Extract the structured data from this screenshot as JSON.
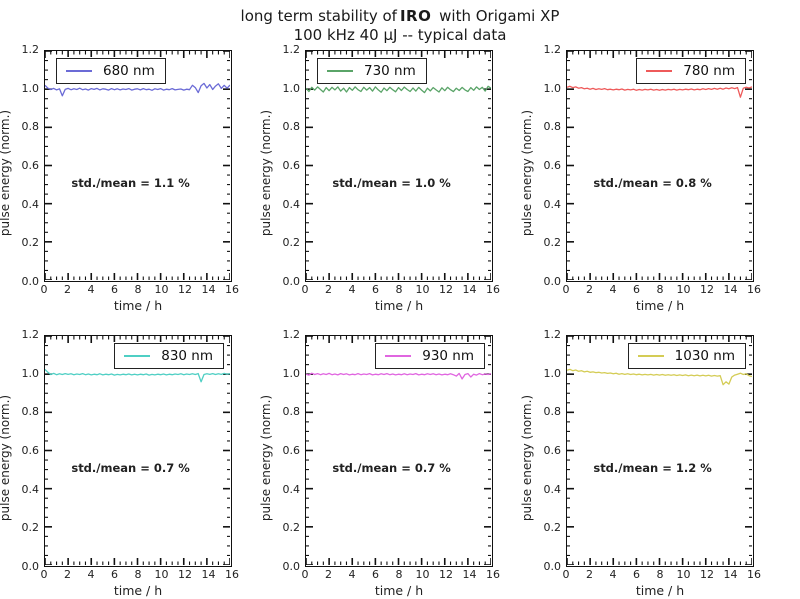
{
  "title": {
    "part1": "long term stability of",
    "part2": "IRO",
    "part3": " with Origami XP",
    "line2": "100 kHz 40 μJ -- typical data"
  },
  "axes": {
    "x_label": "time / h",
    "y_label": "pulse energy (norm.)",
    "x_range": [
      0,
      16
    ],
    "y_range": [
      0,
      1.2
    ],
    "x_tick_labels": [
      "0",
      "2",
      "4",
      "6",
      "8",
      "10",
      "12",
      "14",
      "16"
    ],
    "y_tick_labels": [
      "0.0",
      "0.2",
      "0.4",
      "0.6",
      "0.8",
      "1.0",
      "1.2"
    ],
    "x_major_step": 2,
    "x_minor_step": 0.5,
    "y_major_step": 0.2,
    "y_minor_step": 0.05,
    "grid": false
  },
  "chart_data": [
    {
      "type": "line",
      "legend": "680 nm",
      "color": "#6b6bd6",
      "legend_pos": "left",
      "stat_label": "std./mean = 1.1 %",
      "x_start": 0,
      "x_step": 0.25,
      "y": [
        1.02,
        1.005,
        0.998,
        1.004,
        0.996,
        1.002,
        0.965,
        0.999,
        1.004,
        0.997,
        1.002,
        0.998,
        1.005,
        0.997,
        1.001,
        0.995,
        1.003,
        0.999,
        1.004,
        0.996,
        1.002,
        1.0,
        0.995,
        1.003,
        0.997,
        1.002,
        0.996,
        1.001,
        0.998,
        1.003,
        0.995,
        1.0,
        1.002,
        0.996,
        1.003,
        0.997,
        1.0,
        0.994,
        1.002,
        0.998,
        1.003,
        0.995,
        1.0,
        0.997,
        1.003,
        0.996,
        0.999,
        1.001,
        0.995,
        1.0,
        0.997,
        1.02,
        1.008,
        0.982,
        1.018,
        1.03,
        1.006,
        1.024,
        0.998,
        1.016,
        1.028,
        1.004,
        1.02,
        1.005,
        1.022
      ]
    },
    {
      "type": "line",
      "legend": "730 nm",
      "color": "#5aa468",
      "legend_pos": "left",
      "stat_label": "std./mean = 1.0 %",
      "x_start": 0,
      "x_step": 0.25,
      "y": [
        1.005,
        0.988,
        1.01,
        0.995,
        1.012,
        0.998,
        0.985,
        1.008,
        0.992,
        1.01,
        0.996,
        1.012,
        0.99,
        1.005,
        0.985,
        1.008,
        0.994,
        1.012,
        0.997,
        0.988,
        1.01,
        0.995,
        1.008,
        0.99,
        1.012,
        0.996,
        0.984,
        1.006,
        0.992,
        1.01,
        0.997,
        0.986,
        1.008,
        0.993,
        1.011,
        0.998,
        0.988,
        1.006,
        0.99,
        1.009,
        0.995,
        0.982,
        1.005,
        0.991,
        1.008,
        0.996,
        0.985,
        1.007,
        0.992,
        1.01,
        0.997,
        0.987,
        1.005,
        0.993,
        1.009,
        0.996,
        0.988,
        1.008,
        0.994,
        1.012,
        0.998,
        1.01,
        0.99,
        1.015,
        1.005
      ]
    },
    {
      "type": "line",
      "legend": "780 nm",
      "color": "#ee5a5a",
      "legend_pos": "right",
      "stat_label": "std./mean = 0.8 %",
      "x_start": 0,
      "x_step": 0.25,
      "y": [
        1.01,
        1.015,
        1.008,
        1.012,
        1.005,
        1.008,
        1.002,
        1.005,
        1.0,
        1.004,
        0.998,
        1.002,
        0.999,
        1.003,
        0.997,
        1.0,
        0.996,
        1.0,
        0.997,
        1.001,
        0.995,
        0.999,
        0.996,
        1.0,
        0.994,
        0.998,
        0.995,
        0.999,
        0.996,
        1.0,
        0.995,
        0.998,
        0.994,
        0.998,
        0.995,
        0.999,
        0.996,
        1.0,
        0.995,
        0.999,
        0.996,
        1.0,
        0.997,
        1.001,
        0.996,
        1.0,
        0.997,
        1.002,
        0.998,
        1.003,
        0.999,
        1.004,
        1.0,
        1.005,
        1.0,
        1.006,
        1.002,
        1.007,
        1.003,
        1.008,
        0.958,
        1.005,
        1.01,
        1.006,
        1.012
      ]
    },
    {
      "type": "line",
      "legend": "830 nm",
      "color": "#4fcfc4",
      "legend_pos": "right",
      "stat_label": "std./mean = 0.7 %",
      "x_start": 0,
      "x_step": 0.25,
      "y": [
        1.025,
        1.01,
        0.998,
        1.004,
        0.997,
        1.002,
        0.998,
        1.003,
        0.999,
        1.002,
        0.997,
        1.001,
        0.998,
        1.003,
        0.997,
        1.001,
        0.996,
        1.0,
        0.997,
        1.002,
        0.996,
        1.0,
        0.997,
        1.001,
        0.995,
        0.999,
        0.996,
        1.0,
        0.997,
        1.001,
        0.996,
        1.0,
        0.996,
        1.0,
        0.997,
        1.001,
        0.995,
        0.999,
        0.996,
        1.0,
        0.997,
        1.001,
        0.996,
        1.0,
        0.997,
        1.001,
        0.998,
        1.002,
        0.997,
        1.001,
        0.998,
        1.002,
        0.998,
        1.003,
        0.96,
        0.998,
        1.002,
        0.999,
        1.003,
        0.998,
        1.002,
        0.999,
        1.004,
        1.0,
        1.003
      ]
    },
    {
      "type": "line",
      "legend": "930 nm",
      "color": "#e066e0",
      "legend_pos": "right",
      "stat_label": "std./mean = 0.7 %",
      "x_start": 0,
      "x_step": 0.25,
      "y": [
        1.0,
        0.995,
        1.005,
        0.998,
        1.003,
        0.997,
        1.002,
        0.998,
        1.004,
        0.997,
        1.001,
        0.996,
        1.003,
        0.998,
        1.002,
        0.996,
        1.0,
        0.997,
        1.003,
        0.997,
        1.001,
        0.998,
        1.003,
        0.996,
        1.0,
        0.997,
        1.002,
        0.998,
        1.003,
        0.997,
        1.001,
        0.996,
        1.0,
        0.997,
        1.002,
        0.997,
        1.001,
        0.998,
        1.003,
        0.996,
        1.0,
        0.997,
        1.002,
        0.998,
        1.002,
        0.997,
        1.001,
        0.996,
        1.0,
        0.997,
        1.002,
        0.997,
        0.99,
        1.004,
        0.975,
        0.998,
        1.003,
        0.985,
        1.0,
        0.995,
        1.003,
        0.997,
        1.001,
        0.998,
        1.002
      ]
    },
    {
      "type": "line",
      "legend": "1030 nm",
      "color": "#d4cc55",
      "legend_pos": "right",
      "stat_label": "std./mean = 1.2 %",
      "x_start": 0,
      "x_step": 0.25,
      "y": [
        1.02,
        1.025,
        1.018,
        1.022,
        1.015,
        1.018,
        1.012,
        1.015,
        1.01,
        1.012,
        1.008,
        1.01,
        1.006,
        1.008,
        1.004,
        1.006,
        1.002,
        1.005,
        1.0,
        1.003,
        0.999,
        1.002,
        0.998,
        1.001,
        0.997,
        1.0,
        0.996,
        0.999,
        0.996,
        0.999,
        0.995,
        0.998,
        0.995,
        0.998,
        0.994,
        0.997,
        0.994,
        0.997,
        0.993,
        0.996,
        0.993,
        0.996,
        0.992,
        0.995,
        0.992,
        0.995,
        0.991,
        0.994,
        0.991,
        0.994,
        0.99,
        0.993,
        0.99,
        0.992,
        0.945,
        0.96,
        0.948,
        0.985,
        0.995,
        1.0,
        1.005,
        0.998,
        1.002,
        0.992,
        0.988
      ]
    }
  ]
}
